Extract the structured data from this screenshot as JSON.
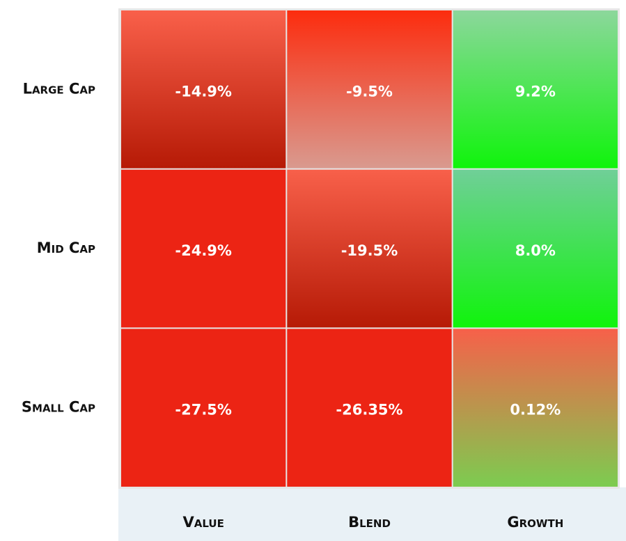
{
  "chart_data": {
    "type": "heatmap",
    "x_categories": [
      "Value",
      "Blend",
      "Growth"
    ],
    "y_categories": [
      "Large Cap",
      "Mid Cap",
      "Small Cap"
    ],
    "values": [
      [
        -14.9,
        -9.5,
        9.2
      ],
      [
        -24.9,
        -19.5,
        8.0
      ],
      [
        -27.5,
        -26.35,
        0.12
      ]
    ],
    "value_labels": [
      [
        "-14.9%",
        "-9.5%",
        "9.2%"
      ],
      [
        "-24.9%",
        "-19.5%",
        "8.0%"
      ],
      [
        "-27.5%",
        "-26.35%",
        "0.12%"
      ]
    ],
    "colors": [
      [
        [
          "#f9604a",
          "#b61a06"
        ],
        [
          "#fc2c0e",
          "#d99a8f"
        ],
        [
          "#8cd79c",
          "#10f40c"
        ]
      ],
      [
        [
          "#ec2414",
          "#ec2414"
        ],
        [
          "#f8604a",
          "#b61a06"
        ],
        [
          "#70cf98",
          "#10f40c"
        ]
      ],
      [
        [
          "#ec2414",
          "#ec2414"
        ],
        [
          "#ec2414",
          "#ec2414"
        ],
        [
          "#f7604a",
          "#7ccc50"
        ]
      ]
    ]
  }
}
